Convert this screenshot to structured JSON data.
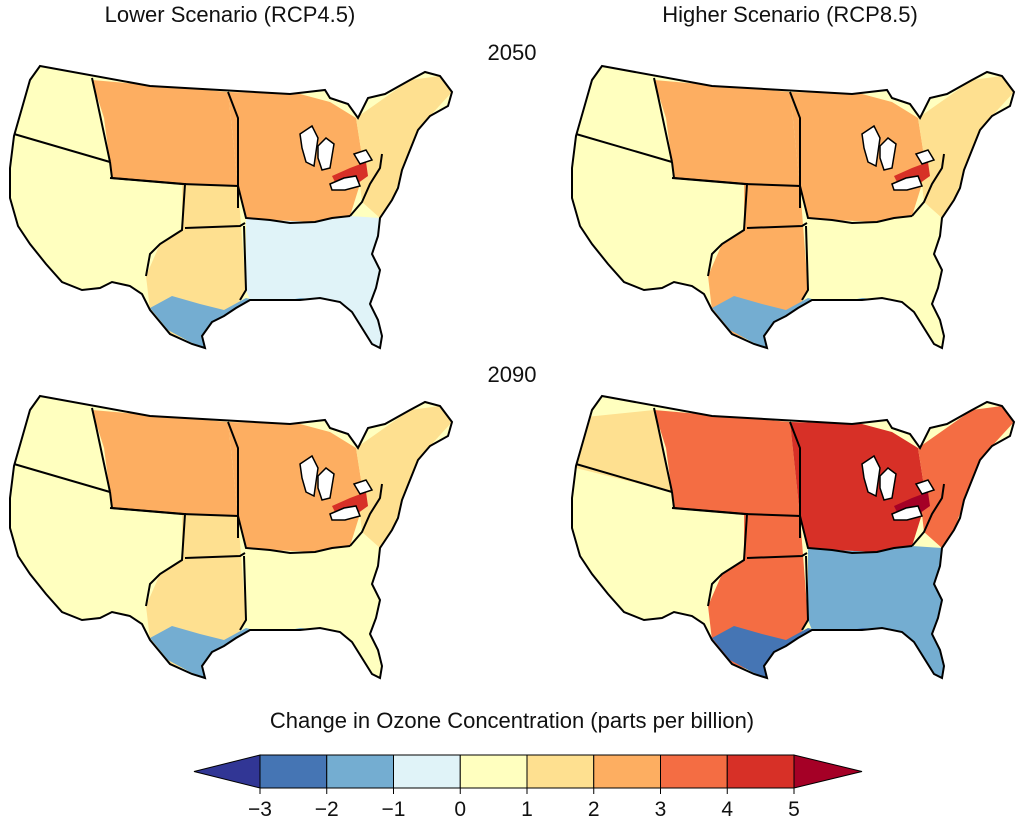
{
  "columns": {
    "left": "Lower Scenario (RCP4.5)",
    "right": "Higher Scenario (RCP8.5)"
  },
  "years": [
    "2050",
    "2090"
  ],
  "legend": {
    "title": "Change in Ozone Concentration (parts per billion)",
    "ticks": [
      "−3",
      "−2",
      "−1",
      "0",
      "1",
      "2",
      "3",
      "4",
      "5"
    ],
    "tick_values": [
      -3,
      -2,
      -1,
      0,
      1,
      2,
      3,
      4,
      5
    ],
    "bins": [
      {
        "min": -4,
        "max": -3,
        "color": "#313695"
      },
      {
        "min": -3,
        "max": -2,
        "color": "#4575b4"
      },
      {
        "min": -2,
        "max": -1,
        "color": "#74add1"
      },
      {
        "min": -1,
        "max": 0,
        "color": "#e0f3f8"
      },
      {
        "min": 0,
        "max": 1,
        "color": "#ffffbf"
      },
      {
        "min": 1,
        "max": 2,
        "color": "#fee090"
      },
      {
        "min": 2,
        "max": 3,
        "color": "#fdae61"
      },
      {
        "min": 3,
        "max": 4,
        "color": "#f46d43"
      },
      {
        "min": 4,
        "max": 5,
        "color": "#d73027"
      },
      {
        "min": 5,
        "max": 6,
        "color": "#a50026"
      }
    ]
  },
  "panels": [
    {
      "scenario": "Lower Scenario (RCP4.5)",
      "year": "2050",
      "regions": {
        "northwest": 0,
        "southwest": 0.5,
        "northern_great_plains": 2.5,
        "southern_great_plains": 1.5,
        "midwest": 2.5,
        "northeast": 1.5,
        "southeast": -0.5,
        "gulf_coast": -1.5,
        "lake_erie_hotspot": 4.5
      }
    },
    {
      "scenario": "Higher Scenario (RCP8.5)",
      "year": "2050",
      "regions": {
        "northwest": 0.5,
        "southwest": 0.5,
        "northern_great_plains": 2.5,
        "southern_great_plains": 2.5,
        "midwest": 2.5,
        "northeast": 1.5,
        "southeast": 0.5,
        "gulf_coast": -1.5,
        "lake_erie_hotspot": 4.5
      }
    },
    {
      "scenario": "Lower Scenario (RCP4.5)",
      "year": "2090",
      "regions": {
        "northwest": 0.5,
        "southwest": 0.5,
        "northern_great_plains": 2.5,
        "southern_great_plains": 1.5,
        "midwest": 2.5,
        "northeast": 1.5,
        "southeast": 0.5,
        "gulf_coast": -1.5,
        "lake_erie_hotspot": 4.5
      }
    },
    {
      "scenario": "Higher Scenario (RCP8.5)",
      "year": "2090",
      "regions": {
        "northwest": 1.5,
        "southwest": 0.5,
        "northern_great_plains": 3.5,
        "southern_great_plains": 3.5,
        "midwest": 4.5,
        "northeast": 3.5,
        "southeast": -1.5,
        "gulf_coast": -2.5,
        "lake_erie_hotspot": 5.5
      }
    }
  ]
}
